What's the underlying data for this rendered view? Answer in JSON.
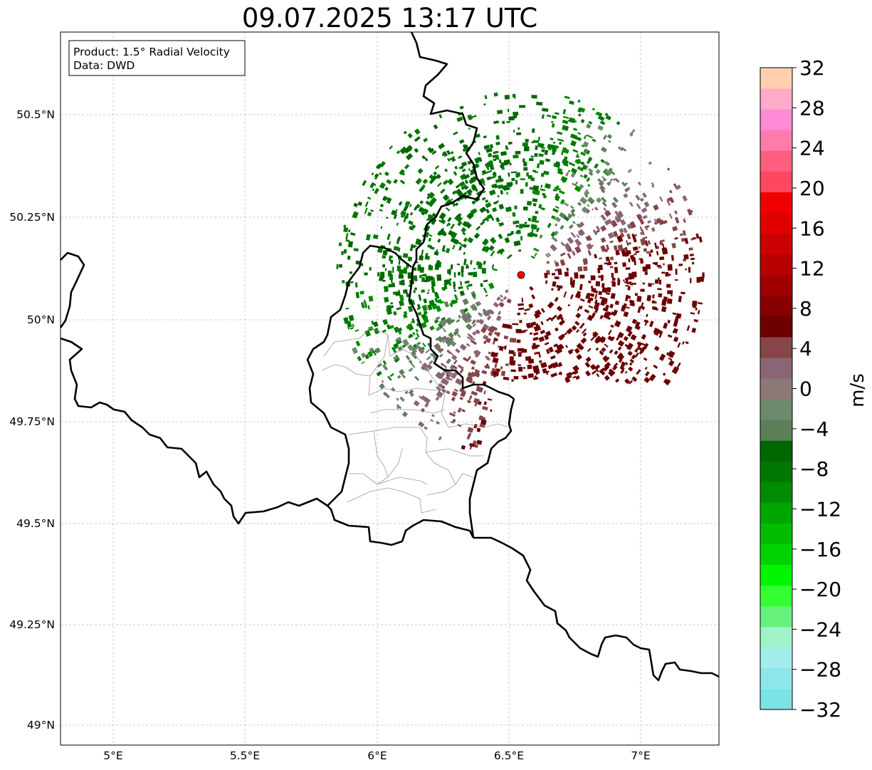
{
  "title": "09.07.2025 13:17 UTC",
  "infobox": {
    "product": "Product: 1.5° Radial Velocity",
    "data": "Data: DWD"
  },
  "axes": {
    "lat_ticks": [
      "50.5°N",
      "50.25°N",
      "50°N",
      "49.75°N",
      "49.5°N",
      "49.25°N",
      "49°N"
    ],
    "lon_ticks": [
      "5°E",
      "5.5°E",
      "6°E",
      "6.5°E",
      "7°E"
    ]
  },
  "radar_site": {
    "lon": 6.55,
    "lat": 50.11,
    "color": "#ff0000"
  },
  "colorbar": {
    "label": "m/s",
    "min": -32,
    "max": 32,
    "tick_labels": [
      "32",
      "28",
      "24",
      "20",
      "16",
      "12",
      "8",
      "4",
      "0",
      "−4",
      "−8",
      "−12",
      "−16",
      "−20",
      "−24",
      "−28",
      "−32"
    ],
    "colors_bottom_to_top": [
      "#7ae3e5",
      "#8de7ea",
      "#a4ebec",
      "#a0f3c8",
      "#66f27c",
      "#33ff33",
      "#00f500",
      "#00d300",
      "#00bd00",
      "#00a600",
      "#008c00",
      "#007800",
      "#006600",
      "#5c7f58",
      "#6d8a6d",
      "#8b7978",
      "#8a6574",
      "#854549",
      "#6c0000",
      "#860000",
      "#a10000",
      "#b80000",
      "#cd0000",
      "#e00000",
      "#f20000",
      "#ff475f",
      "#ff5e7e",
      "#ff7bab",
      "#ff8ad5",
      "#ffaac8",
      "#ffcfae"
    ]
  },
  "velocity_palette": {
    "inbound_strong": "#006600",
    "inbound_mid": "#007800",
    "inbound_weak": "#008c00",
    "near_zero_neg": "#5c7f58",
    "near_zero_neg2": "#6d8a6d",
    "near_zero_pos": "#8a6574",
    "outbound_weak": "#854549",
    "outbound_mid": "#6c0000"
  }
}
